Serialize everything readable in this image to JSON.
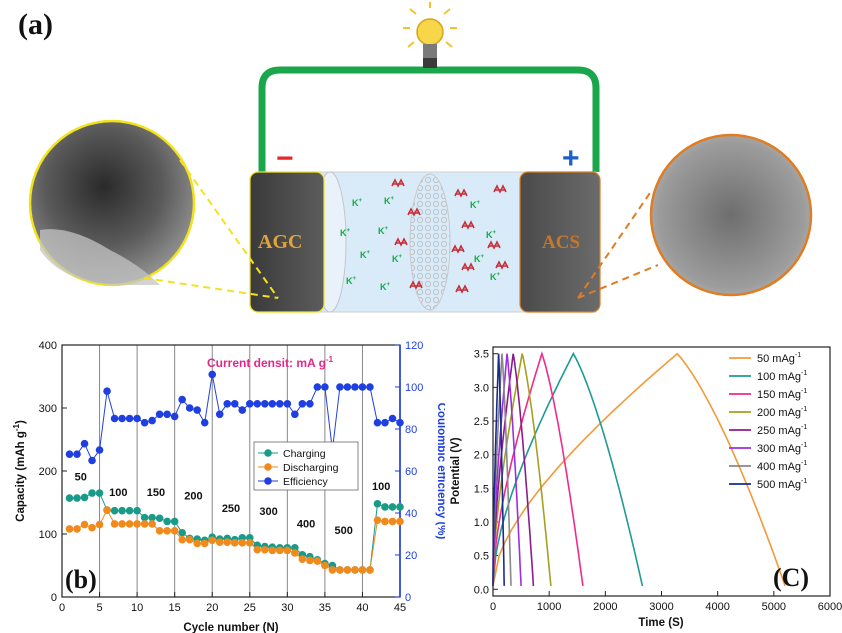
{
  "panel_a": {
    "letter": "(a)",
    "left_electrode": "AGC",
    "right_electrode": "ACS",
    "minus_sign": "−",
    "plus_sign": "+",
    "ion_label": "K",
    "ion_sup": "+",
    "colors": {
      "wire": "#1aa64a",
      "minus": "#e8262c",
      "plus": "#1f5fc9",
      "left_callout": "#f2e21a",
      "right_callout": "#e07c22",
      "anion": "#c9303a",
      "cation": "#1aa64a"
    }
  },
  "chart_data": [
    {
      "type": "line",
      "panel": "(b)",
      "title": "Current densit: mA g",
      "title_sup": "-1",
      "xlabel": "Cycle number (N)",
      "ylabel": "Capacity (mAh g",
      "ylabel_sup": "-1",
      "ylabel_close": ")",
      "y2label": "Coulombic efficiency (%)",
      "xlim": [
        0,
        45
      ],
      "ylim": [
        0,
        400
      ],
      "y2lim": [
        0,
        120
      ],
      "xticks": [
        0,
        5,
        10,
        15,
        20,
        25,
        30,
        35,
        40,
        45
      ],
      "yticks": [
        0,
        100,
        200,
        300,
        400
      ],
      "y2ticks": [
        0,
        20,
        40,
        60,
        80,
        100,
        120
      ],
      "rate_labels": [
        {
          "text": "50",
          "x": 2.5,
          "y": 185
        },
        {
          "text": "100",
          "x": 7.5,
          "y": 160
        },
        {
          "text": "150",
          "x": 12.5,
          "y": 160
        },
        {
          "text": "200",
          "x": 17.5,
          "y": 155
        },
        {
          "text": "250",
          "x": 22.5,
          "y": 135
        },
        {
          "text": "300",
          "x": 27.5,
          "y": 130
        },
        {
          "text": "400",
          "x": 32.5,
          "y": 110
        },
        {
          "text": "500",
          "x": 37.5,
          "y": 100
        },
        {
          "text": "100",
          "x": 42.5,
          "y": 170
        }
      ],
      "legend_position": "right-middle",
      "series": [
        {
          "name": "Charging",
          "color": "#1a9b8a",
          "axis": "left",
          "x": [
            1,
            2,
            3,
            4,
            5,
            6,
            7,
            8,
            9,
            10,
            11,
            12,
            13,
            14,
            15,
            16,
            17,
            18,
            19,
            20,
            21,
            22,
            23,
            24,
            25,
            26,
            27,
            28,
            29,
            30,
            31,
            32,
            33,
            34,
            35,
            36,
            37,
            38,
            39,
            40,
            41,
            42,
            43,
            44,
            45
          ],
          "y": [
            157,
            157,
            158,
            165,
            165,
            138,
            137,
            137,
            137,
            137,
            126,
            126,
            125,
            120,
            120,
            102,
            93,
            92,
            90,
            95,
            92,
            93,
            91,
            94,
            94,
            82,
            80,
            79,
            78,
            78,
            78,
            67,
            64,
            59,
            53,
            50,
            43,
            43,
            43,
            43,
            43,
            148,
            143,
            143,
            143
          ]
        },
        {
          "name": "Discharging",
          "color": "#f08a1c",
          "axis": "left",
          "x": [
            1,
            2,
            3,
            4,
            5,
            6,
            7,
            8,
            9,
            10,
            11,
            12,
            13,
            14,
            15,
            16,
            17,
            18,
            19,
            20,
            21,
            22,
            23,
            24,
            25,
            26,
            27,
            28,
            29,
            30,
            31,
            32,
            33,
            34,
            35,
            36,
            37,
            38,
            39,
            40,
            41,
            42,
            43,
            44,
            45
          ],
          "y": [
            108,
            108,
            115,
            110,
            115,
            138,
            116,
            116,
            116,
            116,
            116,
            116,
            105,
            105,
            105,
            91,
            91,
            85,
            85,
            90,
            87,
            87,
            86,
            86,
            86,
            75,
            75,
            74,
            74,
            74,
            70,
            60,
            58,
            57,
            50,
            43,
            43,
            43,
            43,
            43,
            43,
            122,
            120,
            120,
            120
          ]
        },
        {
          "name": "Efficiency",
          "color": "#1f3fe0",
          "axis": "right",
          "x": [
            1,
            2,
            3,
            4,
            5,
            6,
            7,
            8,
            9,
            10,
            11,
            12,
            13,
            14,
            15,
            16,
            17,
            18,
            19,
            20,
            21,
            22,
            23,
            24,
            25,
            26,
            27,
            28,
            29,
            30,
            31,
            32,
            33,
            34,
            35,
            36,
            37,
            38,
            39,
            40,
            41,
            42,
            43,
            44,
            45
          ],
          "y": [
            68,
            68,
            73,
            65,
            70,
            98,
            85,
            85,
            85,
            85,
            83,
            84,
            87,
            87,
            86,
            94,
            90,
            89,
            83,
            106,
            87,
            92,
            92,
            89,
            92,
            92,
            92,
            92,
            92,
            92,
            87,
            92,
            92,
            100,
            100,
            70,
            100,
            100,
            100,
            100,
            100,
            83,
            83,
            85,
            83
          ]
        }
      ]
    },
    {
      "type": "line",
      "panel": "(C)",
      "xlabel": "Time (S)",
      "ylabel": "Potential (V)",
      "xlim": [
        0,
        6000
      ],
      "ylim": [
        -0.1,
        3.6
      ],
      "xticks": [
        0,
        1000,
        2000,
        3000,
        4000,
        5000,
        6000
      ],
      "yticks": [
        0.0,
        0.5,
        1.0,
        1.5,
        2.0,
        2.5,
        3.0,
        3.5
      ],
      "legend_position": "top-right",
      "legend_unit_sup": "-1",
      "series": [
        {
          "name": "50 mAg",
          "color": "#f29a3a",
          "peak_time": 3280,
          "end_time": 5200
        },
        {
          "name": "100 mAg",
          "color": "#1f9a94",
          "peak_time": 1430,
          "end_time": 2660
        },
        {
          "name": "150 mAg",
          "color": "#ee2a8a",
          "peak_time": 870,
          "end_time": 1600
        },
        {
          "name": "200 mAg",
          "color": "#a5a021",
          "peak_time": 520,
          "end_time": 1030
        },
        {
          "name": "250 mAg",
          "color": "#8a1c8c",
          "peak_time": 360,
          "end_time": 720
        },
        {
          "name": "300 mAg",
          "color": "#9b2ee0",
          "peak_time": 250,
          "end_time": 500
        },
        {
          "name": "400 mAg",
          "color": "#888888",
          "peak_time": 160,
          "end_time": 320
        },
        {
          "name": "500 mAg",
          "color": "#1c2a8c",
          "peak_time": 100,
          "end_time": 200
        }
      ]
    }
  ]
}
